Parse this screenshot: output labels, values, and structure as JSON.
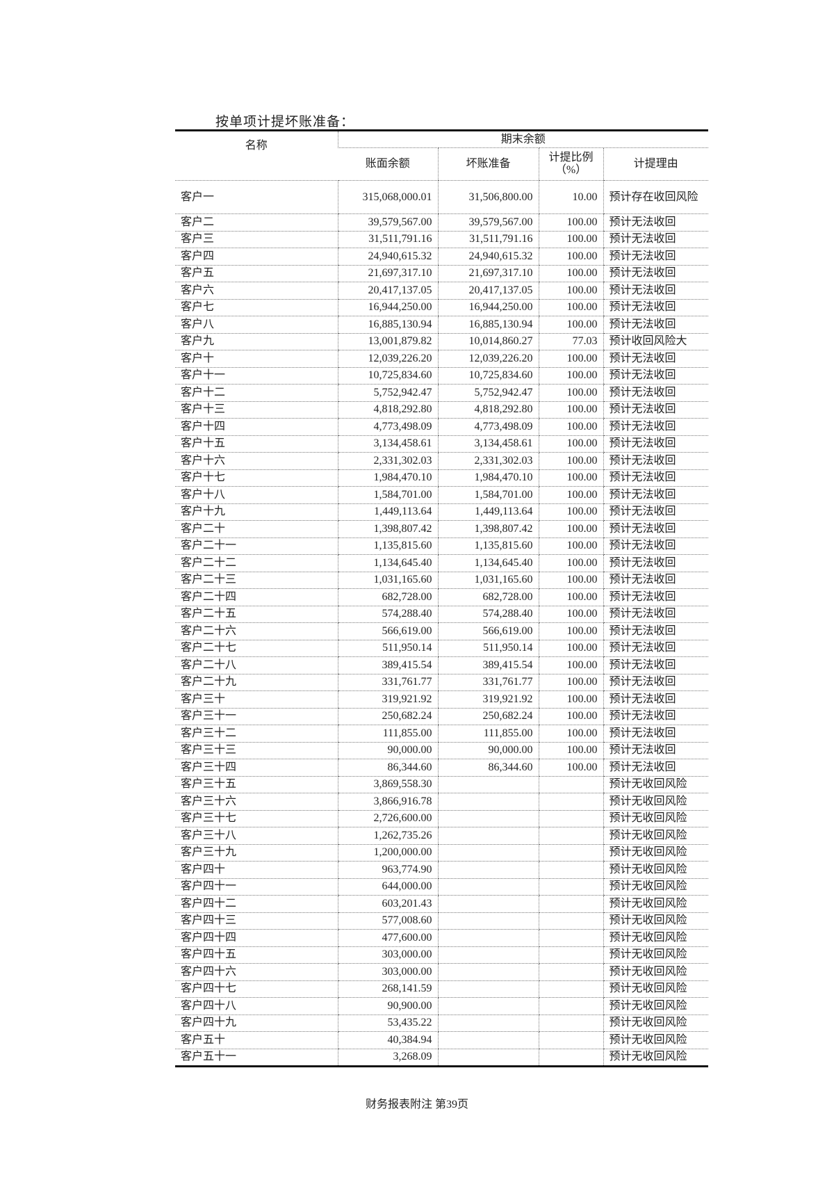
{
  "title": "按单项计提坏账准备：",
  "table": {
    "headers": {
      "name": "名称",
      "group": "期末余额",
      "book_balance": "账面余额",
      "bad_debt_provision": "坏账准备",
      "ratio": "计提比例（%）",
      "reason": "计提理由"
    },
    "rows": [
      [
        "客户一",
        "315,068,000.01",
        "31,506,800.00",
        "10.00",
        "预计存在收回风险"
      ],
      [
        "客户二",
        "39,579,567.00",
        "39,579,567.00",
        "100.00",
        "预计无法收回"
      ],
      [
        "客户三",
        "31,511,791.16",
        "31,511,791.16",
        "100.00",
        "预计无法收回"
      ],
      [
        "客户四",
        "24,940,615.32",
        "24,940,615.32",
        "100.00",
        "预计无法收回"
      ],
      [
        "客户五",
        "21,697,317.10",
        "21,697,317.10",
        "100.00",
        "预计无法收回"
      ],
      [
        "客户六",
        "20,417,137.05",
        "20,417,137.05",
        "100.00",
        "预计无法收回"
      ],
      [
        "客户七",
        "16,944,250.00",
        "16,944,250.00",
        "100.00",
        "预计无法收回"
      ],
      [
        "客户八",
        "16,885,130.94",
        "16,885,130.94",
        "100.00",
        "预计无法收回"
      ],
      [
        "客户九",
        "13,001,879.82",
        "10,014,860.27",
        "77.03",
        "预计收回风险大"
      ],
      [
        "客户十",
        "12,039,226.20",
        "12,039,226.20",
        "100.00",
        "预计无法收回"
      ],
      [
        "客户十一",
        "10,725,834.60",
        "10,725,834.60",
        "100.00",
        "预计无法收回"
      ],
      [
        "客户十二",
        "5,752,942.47",
        "5,752,942.47",
        "100.00",
        "预计无法收回"
      ],
      [
        "客户十三",
        "4,818,292.80",
        "4,818,292.80",
        "100.00",
        "预计无法收回"
      ],
      [
        "客户十四",
        "4,773,498.09",
        "4,773,498.09",
        "100.00",
        "预计无法收回"
      ],
      [
        "客户十五",
        "3,134,458.61",
        "3,134,458.61",
        "100.00",
        "预计无法收回"
      ],
      [
        "客户十六",
        "2,331,302.03",
        "2,331,302.03",
        "100.00",
        "预计无法收回"
      ],
      [
        "客户十七",
        "1,984,470.10",
        "1,984,470.10",
        "100.00",
        "预计无法收回"
      ],
      [
        "客户十八",
        "1,584,701.00",
        "1,584,701.00",
        "100.00",
        "预计无法收回"
      ],
      [
        "客户十九",
        "1,449,113.64",
        "1,449,113.64",
        "100.00",
        "预计无法收回"
      ],
      [
        "客户二十",
        "1,398,807.42",
        "1,398,807.42",
        "100.00",
        "预计无法收回"
      ],
      [
        "客户二十一",
        "1,135,815.60",
        "1,135,815.60",
        "100.00",
        "预计无法收回"
      ],
      [
        "客户二十二",
        "1,134,645.40",
        "1,134,645.40",
        "100.00",
        "预计无法收回"
      ],
      [
        "客户二十三",
        "1,031,165.60",
        "1,031,165.60",
        "100.00",
        "预计无法收回"
      ],
      [
        "客户二十四",
        "682,728.00",
        "682,728.00",
        "100.00",
        "预计无法收回"
      ],
      [
        "客户二十五",
        "574,288.40",
        "574,288.40",
        "100.00",
        "预计无法收回"
      ],
      [
        "客户二十六",
        "566,619.00",
        "566,619.00",
        "100.00",
        "预计无法收回"
      ],
      [
        "客户二十七",
        "511,950.14",
        "511,950.14",
        "100.00",
        "预计无法收回"
      ],
      [
        "客户二十八",
        "389,415.54",
        "389,415.54",
        "100.00",
        "预计无法收回"
      ],
      [
        "客户二十九",
        "331,761.77",
        "331,761.77",
        "100.00",
        "预计无法收回"
      ],
      [
        "客户三十",
        "319,921.92",
        "319,921.92",
        "100.00",
        "预计无法收回"
      ],
      [
        "客户三十一",
        "250,682.24",
        "250,682.24",
        "100.00",
        "预计无法收回"
      ],
      [
        "客户三十二",
        "111,855.00",
        "111,855.00",
        "100.00",
        "预计无法收回"
      ],
      [
        "客户三十三",
        "90,000.00",
        "90,000.00",
        "100.00",
        "预计无法收回"
      ],
      [
        "客户三十四",
        "86,344.60",
        "86,344.60",
        "100.00",
        "预计无法收回"
      ],
      [
        "客户三十五",
        "3,869,558.30",
        "",
        "",
        "预计无收回风险"
      ],
      [
        "客户三十六",
        "3,866,916.78",
        "",
        "",
        "预计无收回风险"
      ],
      [
        "客户三十七",
        "2,726,600.00",
        "",
        "",
        "预计无收回风险"
      ],
      [
        "客户三十八",
        "1,262,735.26",
        "",
        "",
        "预计无收回风险"
      ],
      [
        "客户三十九",
        "1,200,000.00",
        "",
        "",
        "预计无收回风险"
      ],
      [
        "客户四十",
        "963,774.90",
        "",
        "",
        "预计无收回风险"
      ],
      [
        "客户四十一",
        "644,000.00",
        "",
        "",
        "预计无收回风险"
      ],
      [
        "客户四十二",
        "603,201.43",
        "",
        "",
        "预计无收回风险"
      ],
      [
        "客户四十三",
        "577,008.60",
        "",
        "",
        "预计无收回风险"
      ],
      [
        "客户四十四",
        "477,600.00",
        "",
        "",
        "预计无收回风险"
      ],
      [
        "客户四十五",
        "303,000.00",
        "",
        "",
        "预计无收回风险"
      ],
      [
        "客户四十六",
        "303,000.00",
        "",
        "",
        "预计无收回风险"
      ],
      [
        "客户四十七",
        "268,141.59",
        "",
        "",
        "预计无收回风险"
      ],
      [
        "客户四十八",
        "90,900.00",
        "",
        "",
        "预计无收回风险"
      ],
      [
        "客户四十九",
        "53,435.22",
        "",
        "",
        "预计无收回风险"
      ],
      [
        "客户五十",
        "40,384.94",
        "",
        "",
        "预计无收回风险"
      ],
      [
        "客户五十一",
        "3,268.09",
        "",
        "",
        "预计无收回风险"
      ]
    ]
  },
  "footer": "财务报表附注 第39页"
}
